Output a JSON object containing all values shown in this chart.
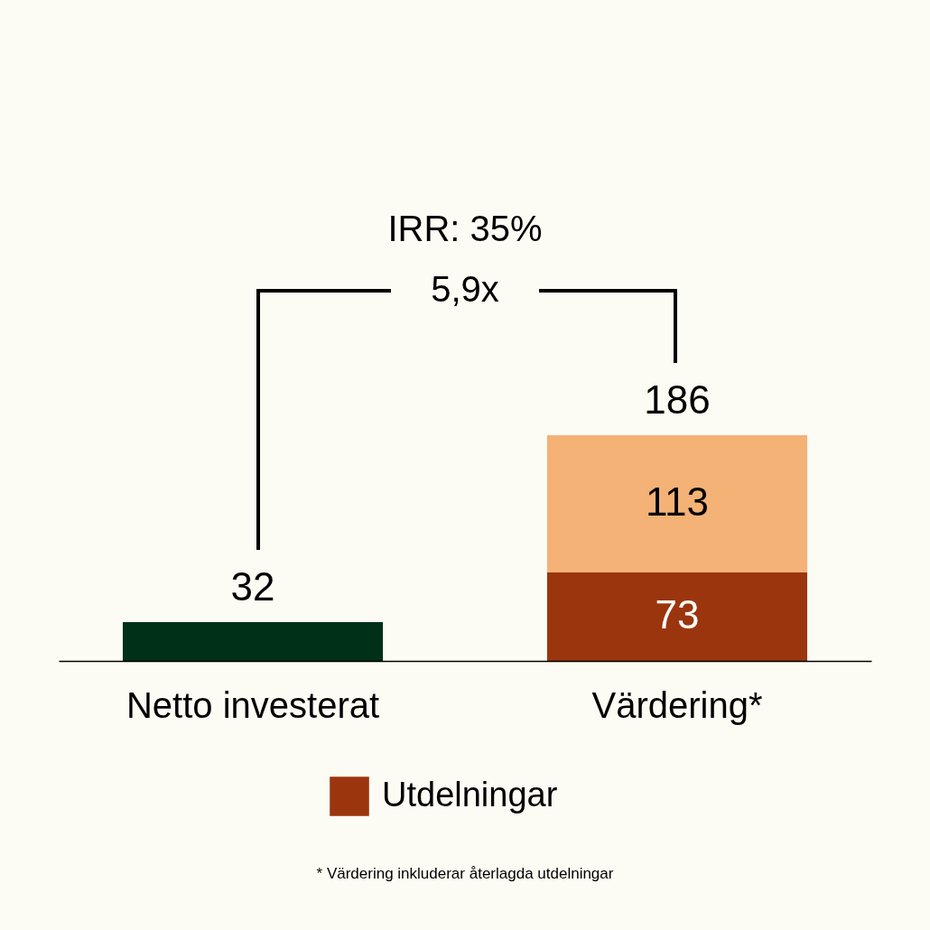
{
  "chart_data": {
    "type": "bar",
    "stacked": true,
    "categories": [
      "Netto investerat",
      "Värdering*"
    ],
    "series": [
      {
        "color": "#003018",
        "values": [
          32,
          null
        ]
      },
      {
        "name": "Utdelningar",
        "color": "#9b350d",
        "values": [
          null,
          73
        ]
      },
      {
        "color": "#f4b277",
        "values": [
          null,
          113
        ]
      }
    ],
    "data_labels": true,
    "totals": [
      null,
      "186"
    ],
    "legend": "bottom",
    "grid": false,
    "annotations": [
      "IRR: 35%",
      "5,9x",
      "* Värdering inkluderar återlagda utdelningar"
    ]
  }
}
